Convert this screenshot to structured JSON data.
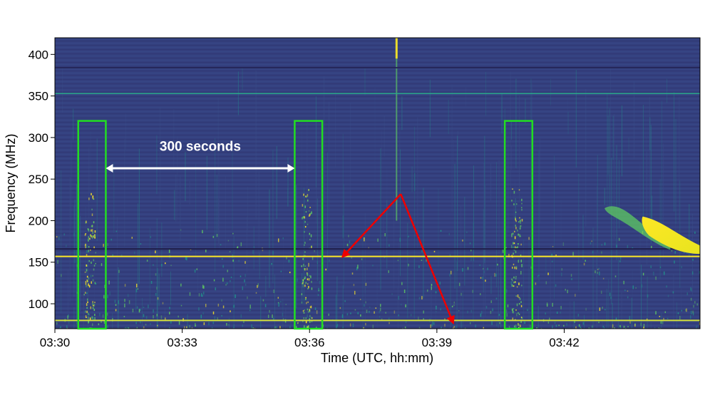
{
  "chart_data": {
    "type": "heatmap",
    "title": "",
    "xlabel": "Time (UTC, hh:mm)",
    "ylabel": "Frequency (MHz)",
    "xlim_minutes": [
      0,
      15.2
    ],
    "ylim": [
      70,
      420
    ],
    "x_ticks": [
      {
        "minute": 0,
        "label": "03:30"
      },
      {
        "minute": 3,
        "label": "03:33"
      },
      {
        "minute": 6,
        "label": "03:36"
      },
      {
        "minute": 9,
        "label": "03:39"
      },
      {
        "minute": 12,
        "label": "03:42"
      }
    ],
    "y_ticks": [
      100,
      150,
      200,
      250,
      300,
      350,
      400
    ],
    "colormap": [
      "#440154",
      "#3b528b",
      "#21918c",
      "#5ec962",
      "#fde725"
    ],
    "background_color": "#34407f",
    "highlight_boxes": [
      {
        "t_start": 0.55,
        "t_end": 1.2,
        "f_low": 70,
        "f_high": 320,
        "color": "#22dd22"
      },
      {
        "t_start": 5.65,
        "t_end": 6.3,
        "f_low": 70,
        "f_high": 320,
        "color": "#22dd22"
      },
      {
        "t_start": 10.6,
        "t_end": 11.25,
        "f_low": 70,
        "f_high": 320,
        "color": "#22dd22"
      }
    ],
    "annotations": [
      {
        "text": "300 seconds",
        "arrow_t_start": 1.2,
        "arrow_t_end": 5.65,
        "f": 263,
        "text_f": 290,
        "color": "#ffffff"
      }
    ],
    "red_arrows": {
      "origin": {
        "t": 8.15,
        "f": 232
      },
      "targets": [
        {
          "t": 6.75,
          "f": 155
        },
        {
          "t": 9.4,
          "f": 75
        }
      ],
      "color": "#ee0000"
    },
    "horizontal_lines": [
      {
        "f": 157,
        "color": "#fde725",
        "width": 2
      },
      {
        "f": 80,
        "color": "#d4e03a",
        "width": 2
      },
      {
        "f": 166,
        "color": "#1f1f4a",
        "width": 2
      },
      {
        "f": 353,
        "color": "#2aa88a",
        "width": 1.5
      },
      {
        "f": 384,
        "color": "#26275a",
        "width": 2
      }
    ],
    "burst_region": {
      "t_start": 12.9,
      "t_end": 15.2,
      "f_low": 158,
      "f_high": 225,
      "color": "#fde725"
    }
  }
}
